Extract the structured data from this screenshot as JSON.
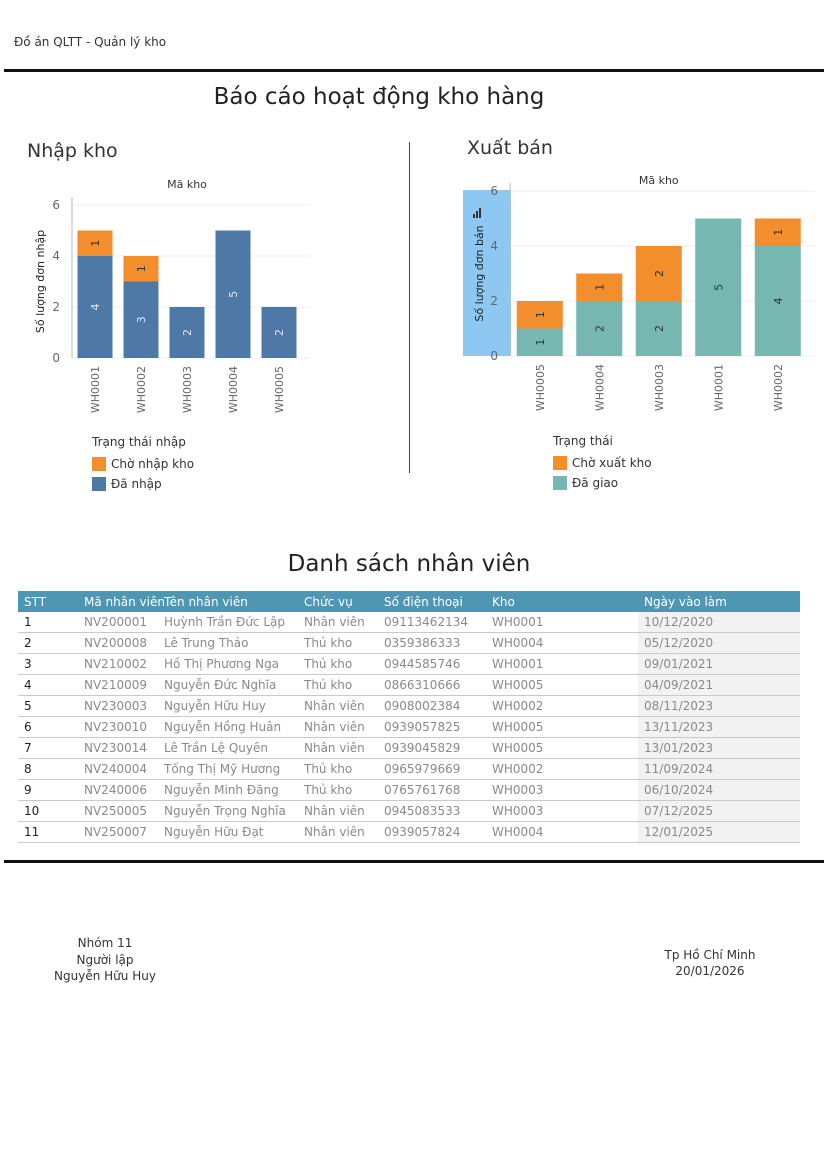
{
  "header": {
    "project": "Đồ án QLTT - Quản lý kho"
  },
  "report_title": "Báo cáo hoạt động kho hàng",
  "import_chart": {
    "title": "Nhập kho",
    "legend_title": "Trạng thái nhập",
    "legend": [
      {
        "label": "Chờ nhập kho",
        "color": "#f28e2b"
      },
      {
        "label": "Đã nhập",
        "color": "#4e79a7"
      }
    ]
  },
  "export_chart": {
    "title": "Xuất bán",
    "legend_title": "Trạng thái",
    "legend": [
      {
        "label": "Chờ xuất kho",
        "color": "#f28e2b"
      },
      {
        "label": "Đã giao",
        "color": "#76b7b2"
      }
    ]
  },
  "chart_data": [
    {
      "type": "bar",
      "stacked": true,
      "title": "Nhập kho",
      "xlabel": "Mã kho",
      "ylabel": "Số lượng đơn nhập",
      "ylim": [
        0,
        6
      ],
      "yticks": [
        "0",
        "2",
        "4",
        "6"
      ],
      "categories": [
        "WH0001",
        "WH0002",
        "WH0003",
        "WH0004",
        "WH0005"
      ],
      "series": [
        {
          "name": "Đã nhập",
          "color": "#4e79a7",
          "values": [
            4,
            3,
            2,
            5,
            2
          ]
        },
        {
          "name": "Chờ nhập kho",
          "color": "#f28e2b",
          "values": [
            1,
            1,
            0,
            0,
            0
          ]
        }
      ]
    },
    {
      "type": "bar",
      "stacked": true,
      "title": "Xuất bán",
      "xlabel": "Mã kho",
      "ylabel": "Số lượng đơn bán",
      "ylim": [
        0,
        6
      ],
      "yticks": [
        "0",
        "2",
        "4",
        "6"
      ],
      "categories": [
        "WH0005",
        "WH0004",
        "WH0003",
        "WH0001",
        "WH0002"
      ],
      "series": [
        {
          "name": "Đã giao",
          "color": "#76b7b2",
          "values": [
            1,
            2,
            2,
            5,
            4
          ]
        },
        {
          "name": "Chờ xuất kho",
          "color": "#f28e2b",
          "values": [
            1,
            1,
            2,
            0,
            1
          ]
        }
      ]
    }
  ],
  "employees": {
    "title": "Danh sách nhân viên",
    "columns": [
      "STT",
      "Mã nhân viên",
      "Tên nhân viên",
      "Chức vụ",
      "Số điện thoại",
      "Kho",
      "Ngày vào làm"
    ],
    "rows": [
      [
        "1",
        "NV200001",
        "Huỳnh Trần Đức Lập",
        "Nhân viên",
        "09113462134",
        "WH0001",
        "10/12/2020"
      ],
      [
        "2",
        "NV200008",
        "Lê Trung Thảo",
        "Thủ kho",
        "0359386333",
        "WH0004",
        "05/12/2020"
      ],
      [
        "3",
        "NV210002",
        "Hồ Thị Phương Nga",
        "Thủ kho",
        "0944585746",
        "WH0001",
        "09/01/2021"
      ],
      [
        "4",
        "NV210009",
        "Nguyễn Đức Nghĩa",
        "Thủ kho",
        "0866310666",
        "WH0005",
        "04/09/2021"
      ],
      [
        "5",
        "NV230003",
        "Nguyễn Hữu Huy",
        "Nhân viên",
        "0908002384",
        "WH0002",
        "08/11/2023"
      ],
      [
        "6",
        "NV230010",
        "Nguyễn Hồng Huân",
        "Nhân viên",
        "0939057825",
        "WH0005",
        "13/11/2023"
      ],
      [
        "7",
        "NV230014",
        "Lê Trần Lệ Quyên",
        "Nhân viên",
        "0939045829",
        "WH0005",
        "13/01/2023"
      ],
      [
        "8",
        "NV240004",
        "Tống Thị Mỹ Hương",
        "Thủ kho",
        "0965979669",
        "WH0002",
        "11/09/2024"
      ],
      [
        "9",
        "NV240006",
        "Nguyễn Minh Đăng",
        "Thủ kho",
        "0765761768",
        "WH0003",
        "06/10/2024"
      ],
      [
        "10",
        "NV250005",
        "Nguyễn Trọng Nghĩa",
        "Nhân viên",
        "0945083533",
        "WH0003",
        "07/12/2025"
      ],
      [
        "11",
        "NV250007",
        "Nguyễn Hữu Đạt",
        "Nhân viên",
        "0939057824",
        "WH0004",
        "12/01/2025"
      ]
    ]
  },
  "footer": {
    "group": "Nhóm 11",
    "preparer_label": "Người lập",
    "preparer_name": "Nguyễn Hữu Huy",
    "city": "Tp Hồ Chí Minh",
    "date": "20/01/2026"
  }
}
